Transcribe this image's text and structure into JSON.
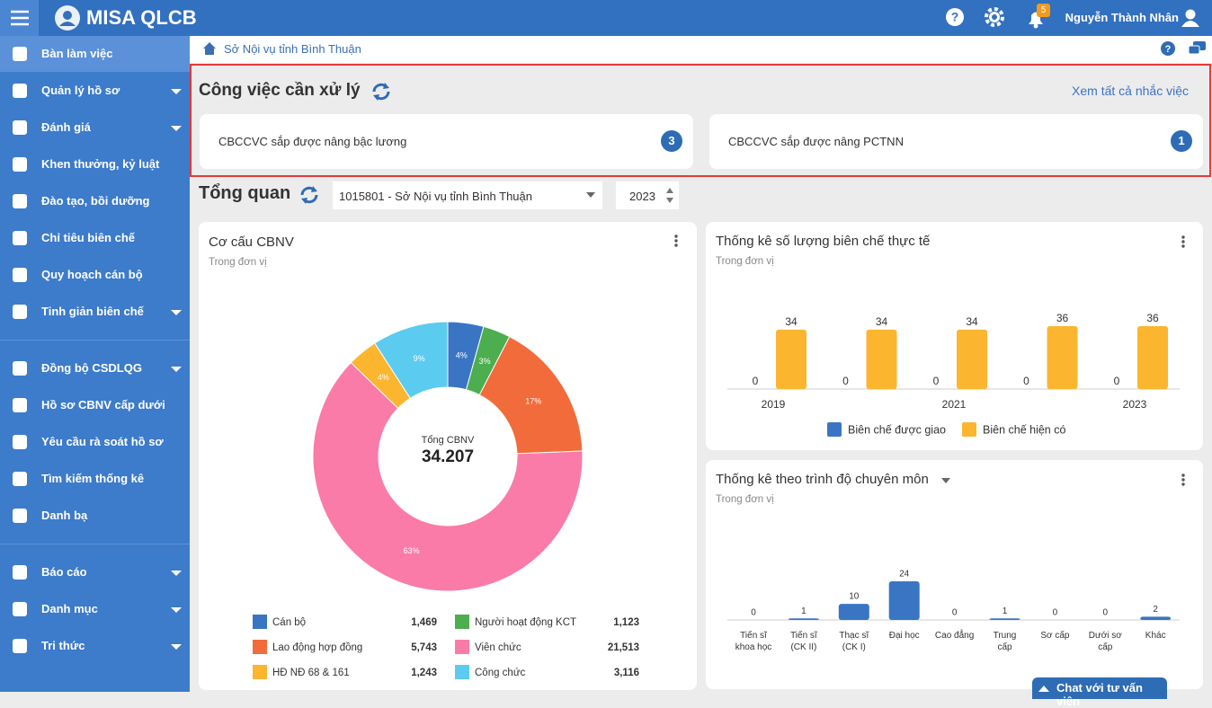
{
  "header": {
    "app_name": "MISA QLCB",
    "notification_count": 5,
    "user_name": "Nguyễn Thành Nhân"
  },
  "sidebar": {
    "groups": [
      [
        {
          "label": "Bàn làm việc",
          "active": true,
          "expandable": false
        },
        {
          "label": "Quản lý hồ sơ",
          "active": false,
          "expandable": true
        },
        {
          "label": "Đánh giá",
          "active": false,
          "expandable": true
        },
        {
          "label": "Khen thưởng, kỷ luật",
          "active": false,
          "expandable": false
        },
        {
          "label": "Đào tạo, bồi dưỡng",
          "active": false,
          "expandable": false
        },
        {
          "label": "Chỉ tiêu biên chế",
          "active": false,
          "expandable": false
        },
        {
          "label": "Quy hoạch cán bộ",
          "active": false,
          "expandable": false
        },
        {
          "label": "Tinh giản biên chế",
          "active": false,
          "expandable": true
        }
      ],
      [
        {
          "label": "Đồng bộ CSDLQG",
          "active": false,
          "expandable": true
        },
        {
          "label": "Hồ sơ CBNV cấp dưới",
          "active": false,
          "expandable": false
        },
        {
          "label": "Yêu cầu rà soát hồ sơ",
          "active": false,
          "expandable": false
        },
        {
          "label": "Tìm kiếm thống kê",
          "active": false,
          "expandable": false
        },
        {
          "label": "Danh bạ",
          "active": false,
          "expandable": false
        }
      ],
      [
        {
          "label": "Báo cáo",
          "active": false,
          "expandable": true
        },
        {
          "label": "Danh mục",
          "active": false,
          "expandable": true
        },
        {
          "label": "Tri thức",
          "active": false,
          "expandable": true
        }
      ]
    ]
  },
  "breadcrumb": "Sở Nội vụ tỉnh Bình Thuận",
  "tasks": {
    "title": "Công việc cần xử lý",
    "view_all": "Xem tất cả nhắc việc",
    "items": [
      {
        "label": "CBCCVC sắp được nâng bậc lương",
        "count": 3
      },
      {
        "label": "CBCCVC sắp được nâng PCTNN",
        "count": 1
      }
    ]
  },
  "overview": {
    "title": "Tổng quan",
    "unit_select": "1015801 - Sở Nội vụ tỉnh Bình Thuận",
    "year": "2023"
  },
  "chart_data": [
    {
      "type": "donut",
      "title": "Cơ cấu CBNV",
      "subtitle": "Trong đơn vị",
      "center_label": "Tổng CBNV",
      "center_value": "34.207",
      "categories": [
        "Cán bộ",
        "Người hoạt động KCT",
        "Lao động hợp đồng",
        "Viên chức",
        "HĐ NĐ 68 & 161",
        "Công chức"
      ],
      "values": [
        1469,
        1123,
        5743,
        21513,
        1243,
        3116
      ],
      "value_labels": [
        "1,469",
        "1,123",
        "5,743",
        "21,513",
        "1,243",
        "3,116"
      ],
      "percent_labels": [
        "4%",
        "3%",
        "17%",
        "63%",
        "4%",
        "9%"
      ],
      "colors": [
        "#3a75c4",
        "#4cae4f",
        "#f26b3a",
        "#fa7ba8",
        "#fbb52f",
        "#5bcbf0"
      ]
    },
    {
      "type": "bar",
      "title": "Thống kê số lượng biên chế thực tế",
      "subtitle": "Trong đơn vị",
      "categories": [
        "2019",
        null,
        "2021",
        null,
        "2023"
      ],
      "series": [
        {
          "name": "Biên chế được giao",
          "color": "#3a75c4",
          "values": [
            0,
            0,
            0,
            0,
            0
          ]
        },
        {
          "name": "Biên chế hiện có",
          "color": "#fbb52f",
          "values": [
            34,
            34,
            34,
            36,
            36
          ]
        }
      ]
    },
    {
      "type": "bar",
      "title": "Thống kê theo trình độ chuyên môn",
      "subtitle": "Trong đơn vị",
      "categories": [
        "Tiến sĩ khoa học",
        "Tiến sĩ (CK II)",
        "Thạc sĩ (CK I)",
        "Đại học",
        "Cao đẳng",
        "Trung cấp",
        "Sơ cấp",
        "Dưới sơ cấp",
        "Khác"
      ],
      "series": [
        {
          "color": "#3a75c4",
          "values": [
            0,
            1,
            10,
            24,
            0,
            1,
            0,
            0,
            2
          ]
        }
      ]
    }
  ],
  "chat_button": "Chat với tư vấn viên"
}
